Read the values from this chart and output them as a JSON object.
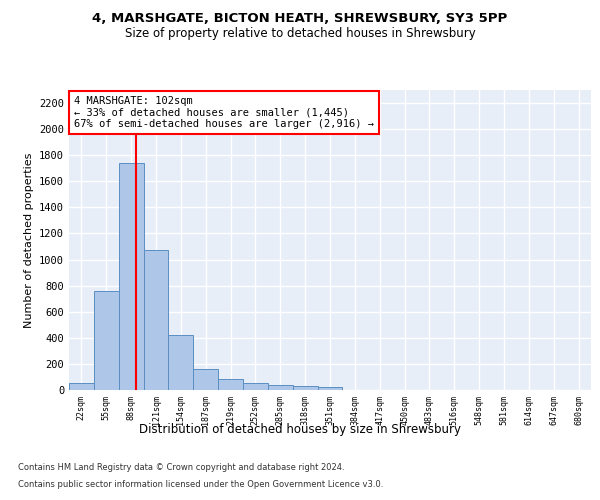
{
  "title": "4, MARSHGATE, BICTON HEATH, SHREWSBURY, SY3 5PP",
  "subtitle": "Size of property relative to detached houses in Shrewsbury",
  "xlabel": "Distribution of detached houses by size in Shrewsbury",
  "ylabel": "Number of detached properties",
  "bar_color": "#aec6e8",
  "bar_edge_color": "#5a8fc2",
  "background_color": "#e8eef8",
  "grid_color": "#ffffff",
  "annotation_line_color": "red",
  "annotation_text": "4 MARSHGATE: 102sqm\n← 33% of detached houses are smaller (1,445)\n67% of semi-detached houses are larger (2,916) →",
  "annotation_box_color": "white",
  "annotation_border_color": "red",
  "footer_line1": "Contains HM Land Registry data © Crown copyright and database right 2024.",
  "footer_line2": "Contains public sector information licensed under the Open Government Licence v3.0.",
  "bin_labels": [
    "22sqm",
    "55sqm",
    "88sqm",
    "121sqm",
    "154sqm",
    "187sqm",
    "219sqm",
    "252sqm",
    "285sqm",
    "318sqm",
    "351sqm",
    "384sqm",
    "417sqm",
    "450sqm",
    "483sqm",
    "516sqm",
    "548sqm",
    "581sqm",
    "614sqm",
    "647sqm",
    "680sqm"
  ],
  "bar_heights": [
    55,
    760,
    1740,
    1075,
    420,
    160,
    85,
    50,
    42,
    30,
    20,
    0,
    0,
    0,
    0,
    0,
    0,
    0,
    0,
    0,
    0
  ],
  "ylim": [
    0,
    2300
  ],
  "yticks": [
    0,
    200,
    400,
    600,
    800,
    1000,
    1200,
    1400,
    1600,
    1800,
    2000,
    2200
  ],
  "red_line_x": 2.18,
  "figsize": [
    6.0,
    5.0
  ],
  "dpi": 100
}
